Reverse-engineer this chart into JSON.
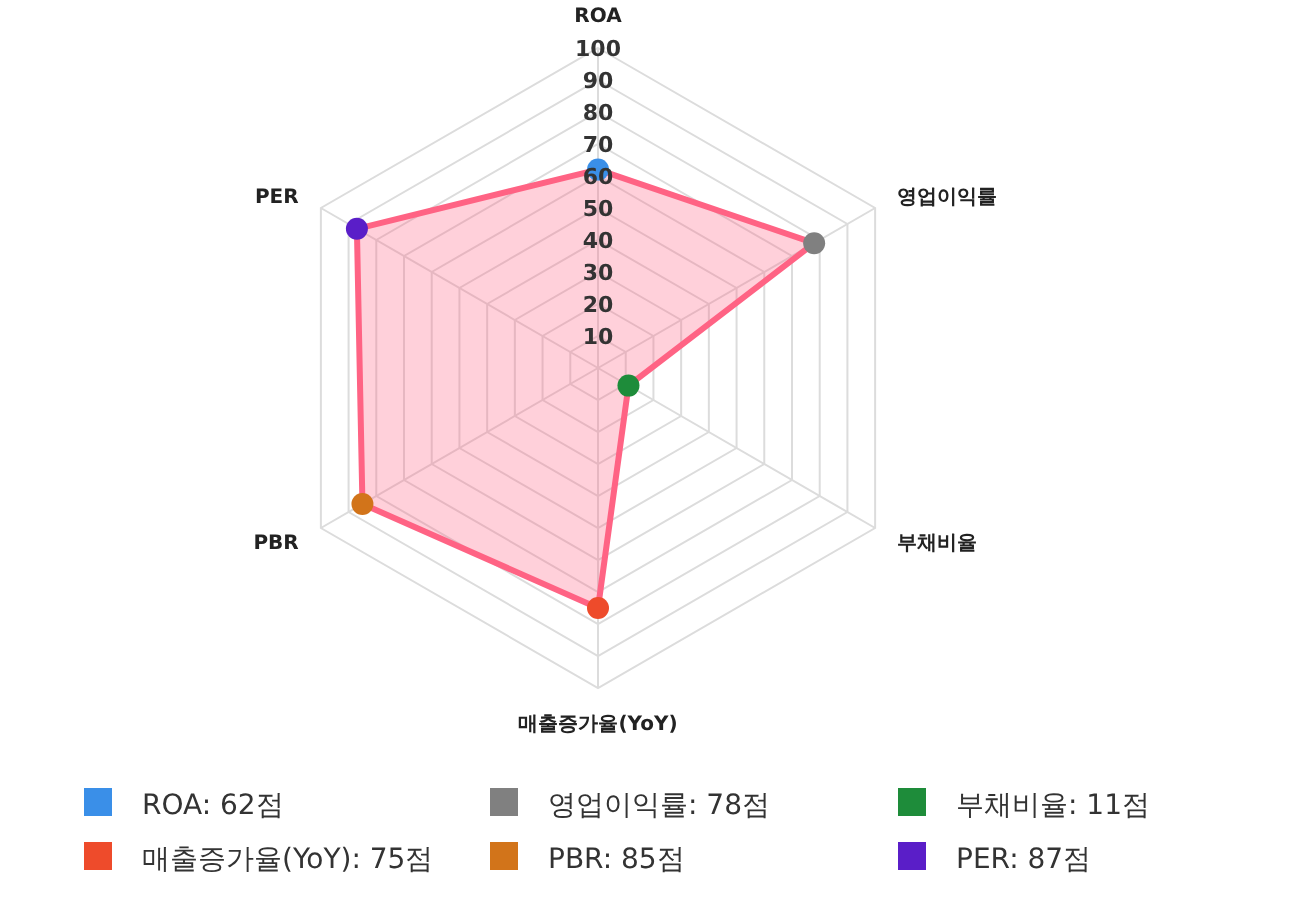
{
  "chart_data": {
    "type": "radar",
    "categories": [
      "ROA",
      "영업이익률",
      "부채비율",
      "매출증가율(YoY)",
      "PBR",
      "PER"
    ],
    "series": [
      {
        "color": "#ff6384",
        "values": [
          62,
          78,
          11,
          75,
          85,
          87
        ],
        "colors": [
          "#3a8fe8",
          "#808080",
          "#1e8c3a",
          "#ee4b2b",
          "#d2741a",
          "#5a1ec8"
        ]
      }
    ],
    "ylim": [
      0,
      100
    ],
    "yticks": [
      10,
      20,
      30,
      40,
      50,
      60,
      70,
      80,
      90,
      100
    ],
    "grid": true,
    "marker": "circle",
    "annotations": [
      "ROA: 62점",
      "영업이익률: 78점",
      "부채비율: 11점",
      "매출증가율(YoY): 75점",
      "PBR: 85점",
      "PER: 87점"
    ]
  }
}
